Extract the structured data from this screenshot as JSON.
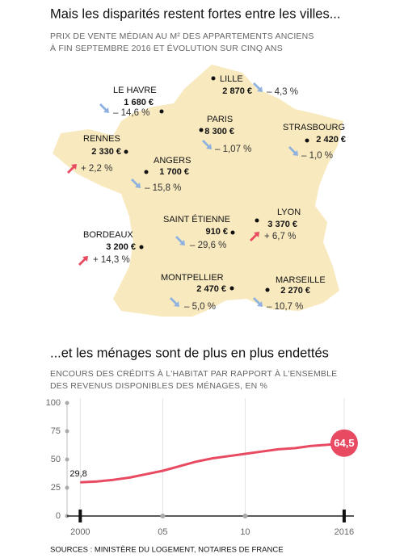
{
  "header": {
    "title": "Mais les disparités restent fortes entre les villes...",
    "subtitle": [
      "PRIX DE VENTE MÉDIAN AU M² DES APPARTEMENTS ANCIENS",
      "À FIN SEPTEMBRE 2016 ET ÉVOLUTION SUR CINQ ANS"
    ]
  },
  "map": {
    "cities": [
      {
        "name": "LE HAVRE",
        "price": "1 680 €",
        "change": "– 14,6 %",
        "trend": "down"
      },
      {
        "name": "LILLE",
        "price": "2 870 €",
        "change": "– 4,3 %",
        "trend": "down"
      },
      {
        "name": "PARIS",
        "price": "8 300 €",
        "change": "– 1,07 %",
        "trend": "down"
      },
      {
        "name": "STRASBOURG",
        "price": "2 420 €",
        "change": "– 1,0 %",
        "trend": "down"
      },
      {
        "name": "RENNES",
        "price": "2 330 €",
        "change": "+ 2,2 %",
        "trend": "up"
      },
      {
        "name": "ANGERS",
        "price": "1 700 €",
        "change": "– 15,8 %",
        "trend": "down"
      },
      {
        "name": "SAINT ÉTIENNE",
        "price": "910 €",
        "change": "– 29,6 %",
        "trend": "down"
      },
      {
        "name": "LYON",
        "price": "3 370 €",
        "change": "+ 6,7 %",
        "trend": "up"
      },
      {
        "name": "BORDEAUX",
        "price": "3 200 €",
        "change": "+ 14,3 %",
        "trend": "up"
      },
      {
        "name": "MONTPELLIER",
        "price": "2 470 €",
        "change": "– 5,0 %",
        "trend": "down"
      },
      {
        "name": "MARSEILLE",
        "price": "2 270 €",
        "change": "– 10,7 %",
        "trend": "down"
      }
    ]
  },
  "chart_data": {
    "type": "line",
    "title": "...et les ménages sont de plus en plus endettés",
    "subtitle": [
      "ENCOURS DES CRÉDITS À L'HABITAT PAR RAPPORT À L'ENSEMBLE",
      "DES REVENUS DISPONIBLES DES MÉNAGES, EN %"
    ],
    "x": [
      2000,
      2001,
      2002,
      2003,
      2004,
      2005,
      2006,
      2007,
      2008,
      2009,
      2010,
      2011,
      2012,
      2013,
      2014,
      2015,
      2016
    ],
    "values": [
      29.8,
      30.5,
      32,
      34,
      37,
      40,
      44,
      48,
      51,
      53,
      55,
      57,
      59,
      60,
      62,
      63,
      64.5
    ],
    "value_labels": [
      "29,8",
      null,
      null,
      null,
      null,
      null,
      null,
      null,
      null,
      null,
      null,
      null,
      null,
      null,
      null,
      null,
      "64,5"
    ],
    "color": "#e84a62",
    "xlim": [
      1999.2,
      2016.2
    ],
    "xticks": [
      2000,
      {
        "value": 2005,
        "label": "05"
      },
      {
        "value": 2010,
        "label": "10"
      },
      2016
    ],
    "ylim": [
      0,
      100
    ],
    "yticks": [
      0,
      25,
      50,
      75,
      100
    ],
    "grid": true
  },
  "source": "SOURCES : MINISTÈRE DU LOGEMENT, NOTAIRES DE FRANCE"
}
